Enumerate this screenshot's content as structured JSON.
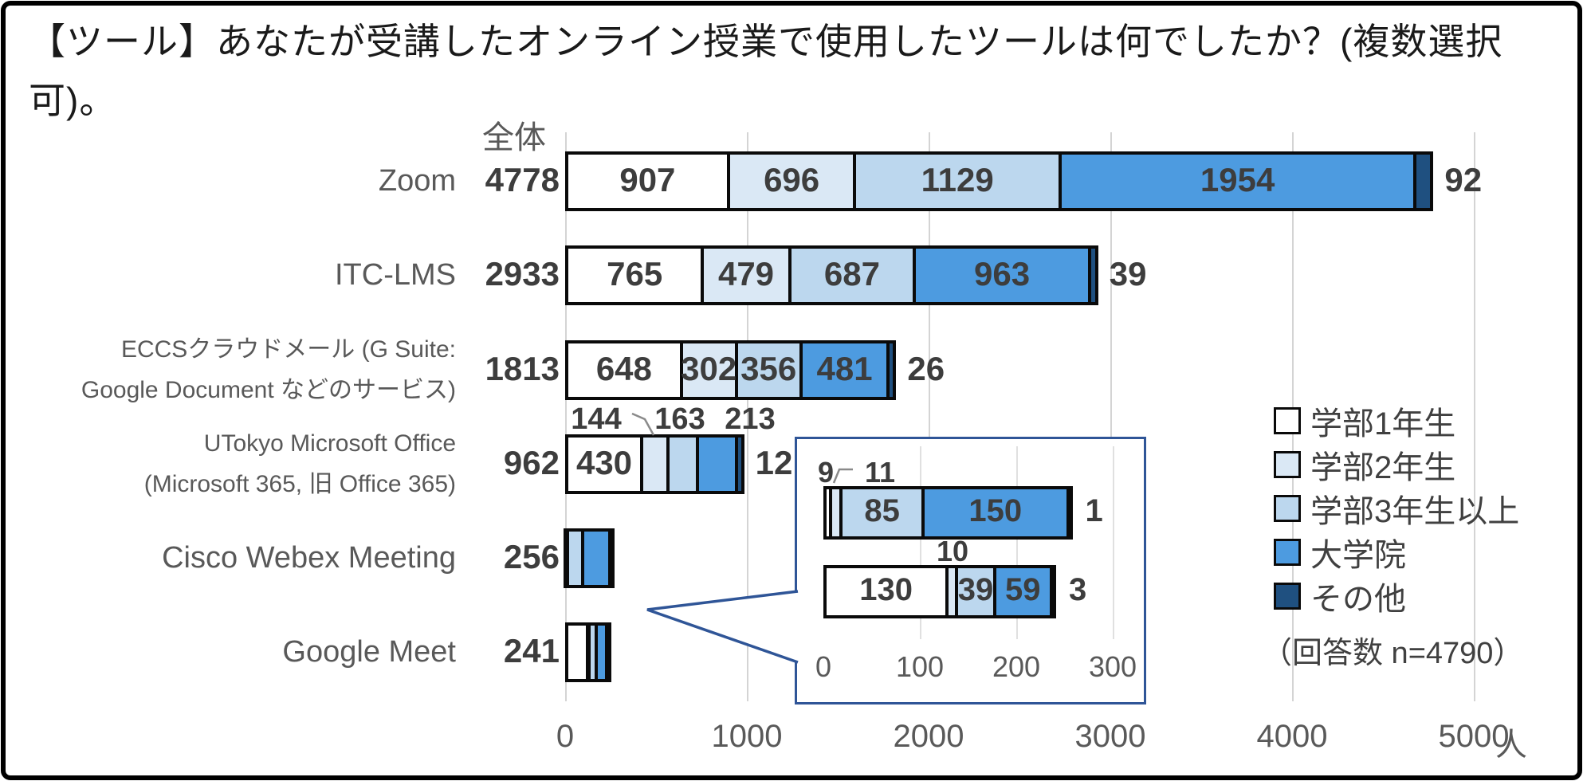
{
  "title": "【ツール】あなたが受講したオンライン授業で使用したツールは何でしたか？(複数選択可)。",
  "chart": {
    "total_header": "全体"
  },
  "chart_data": {
    "type": "bar",
    "orientation": "horizontal",
    "stacked": true,
    "title": "【ツール】あなたが受講したオンライン授業で使用したツールは何でしたか？(複数選択可)。",
    "xlim": [
      0,
      5000
    ],
    "x_tick_values": [
      0,
      1000,
      2000,
      3000,
      4000,
      5000
    ],
    "x_tick_labels": [
      "0",
      "1000",
      "2000",
      "3000",
      "4000",
      "5000"
    ],
    "x_unit": "人",
    "n_note": "（回答数 n=4790）",
    "grid": true,
    "legend_position": "right",
    "total_header": "全体",
    "categories": [
      "Zoom",
      "ITC-LMS",
      "ECCSクラウドメール (G Suite: Google Document などのサービス)",
      "UTokyo Microsoft Office (Microsoft 365, 旧 Office 365)",
      "Cisco Webex Meeting",
      "Google Meet"
    ],
    "category_label_lines": [
      [
        "Zoom"
      ],
      [
        "ITC-LMS"
      ],
      [
        "ECCSクラウドメール (G Suite:",
        "Google Document などのサービス)"
      ],
      [
        "UTokyo Microsoft Office",
        "(Microsoft 365, 旧 Office 365)"
      ],
      [
        "Cisco Webex Meeting"
      ],
      [
        "Google Meet"
      ]
    ],
    "totals": [
      4778,
      2933,
      1813,
      962,
      256,
      241
    ],
    "series": [
      {
        "name": "学部1年生",
        "color": "#FFFFFF",
        "values": [
          907,
          765,
          648,
          430,
          9,
          130
        ]
      },
      {
        "name": "学部2年生",
        "color": "#DAE8F5",
        "values": [
          696,
          479,
          302,
          144,
          11,
          10
        ]
      },
      {
        "name": "学部3年生以上",
        "color": "#BCD7EE",
        "values": [
          1129,
          687,
          356,
          163,
          85,
          39
        ]
      },
      {
        "name": "大学院",
        "color": "#4D9BE0",
        "values": [
          1954,
          963,
          481,
          213,
          150,
          59
        ]
      },
      {
        "name": "その他",
        "color": "#1F5080",
        "values": [
          92,
          39,
          26,
          12,
          1,
          3
        ]
      }
    ],
    "label_placement": [
      [
        "inside",
        "inside",
        "inside",
        "inside",
        "outside"
      ],
      [
        "inside",
        "inside",
        "inside",
        "inside",
        "outside"
      ],
      [
        "inside",
        "inside",
        "inside",
        "inside",
        "outside"
      ],
      [
        "inside",
        "above",
        "above",
        "above",
        "outside"
      ],
      [
        "none",
        "none",
        "none",
        "none",
        "none"
      ],
      [
        "none",
        "none",
        "none",
        "none",
        "none"
      ]
    ],
    "inset": {
      "description": "magnified view of the two smallest bars",
      "categories": [
        "Cisco Webex Meeting",
        "Google Meet"
      ],
      "category_indices": [
        4,
        5
      ],
      "xlim": [
        0,
        300
      ],
      "x_tick_values": [
        0,
        100,
        200,
        300
      ],
      "x_tick_labels": [
        "0",
        "100",
        "200",
        "300"
      ],
      "label_placement": [
        [
          "above",
          "above",
          "inside",
          "inside",
          "outside"
        ],
        [
          "inside",
          "above",
          "inside",
          "inside",
          "outside"
        ]
      ]
    }
  },
  "colors": {
    "grid": "#D4D4D4",
    "bar_border": "#0A0A0A",
    "inset_border": "#2F5597",
    "label_gray": "#595959",
    "number_dark": "#3D3D3D"
  }
}
